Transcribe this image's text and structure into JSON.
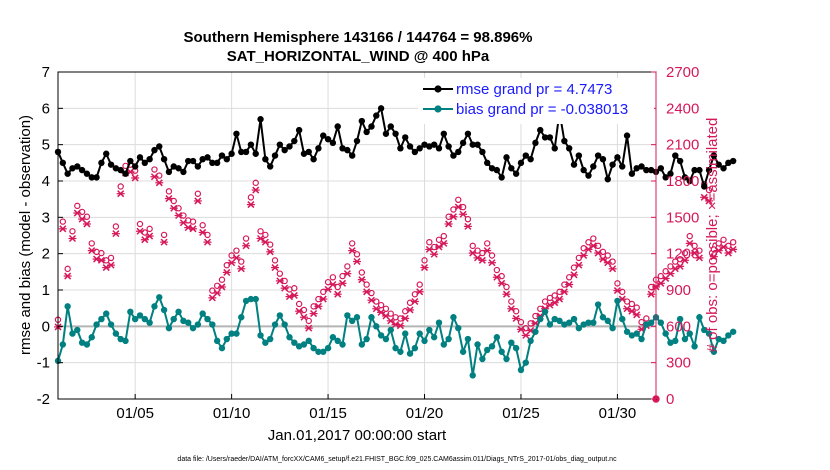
{
  "chart_data": {
    "type": "line",
    "title": "Southern Hemisphere 143166 / 144764 = 98.896%",
    "subtitle": "SAT_HORIZONTAL_WIND @ 400 hPa",
    "xlabel": "Jan.01,2017 00:00:00 start",
    "ylabel_left": "rmse and bias (model - observation)",
    "ylabel_right": "# of obs: o=possible; ×=assimilated",
    "x_ticks": [
      "01/05",
      "01/10",
      "01/15",
      "01/20",
      "01/25",
      "01/30"
    ],
    "x_tick_days": [
      5,
      10,
      15,
      20,
      25,
      30
    ],
    "x_range_days": [
      1,
      32
    ],
    "ylim_left": [
      -2,
      7
    ],
    "yticks_left": [
      -2,
      -1,
      0,
      1,
      2,
      3,
      4,
      5,
      6,
      7
    ],
    "ylim_right": [
      0,
      2700
    ],
    "yticks_right": [
      0,
      300,
      600,
      900,
      1200,
      1500,
      1800,
      2100,
      2400,
      2700
    ],
    "legend": [
      {
        "label": "rmse grand pr = 4.7473",
        "color": "#0000ff",
        "line_color": "#000000"
      },
      {
        "label": "bias grand pr = -0.038013",
        "color": "#0000ff",
        "line_color": "#008080"
      }
    ],
    "legend_position": "top-right",
    "colors": {
      "rmse": "#000000",
      "bias": "#008080",
      "obs": "#d6185a",
      "zero_line": "#b4b4b4",
      "grid": "#dcdcdc",
      "legend_text": "#1a1aff"
    },
    "x_start_day": 1,
    "x_step_days": 0.25,
    "series": [
      {
        "name": "rmse",
        "axis": "left",
        "values": [
          4.8,
          4.5,
          4.2,
          4.35,
          4.4,
          4.3,
          4.2,
          4.1,
          4.1,
          4.5,
          4.75,
          4.45,
          4.35,
          4.3,
          4.2,
          4.55,
          4.4,
          4.65,
          4.5,
          4.6,
          4.85,
          4.95,
          4.6,
          4.25,
          4.4,
          4.35,
          4.25,
          4.55,
          4.55,
          4.4,
          4.6,
          4.65,
          4.5,
          4.5,
          4.7,
          4.6,
          4.75,
          5.3,
          4.8,
          4.8,
          5.0,
          4.75,
          5.7,
          4.6,
          4.4,
          4.7,
          5.0,
          4.85,
          4.95,
          5.1,
          5.4,
          4.75,
          4.8,
          4.6,
          4.9,
          5.25,
          5.15,
          5.05,
          5.5,
          4.9,
          4.85,
          4.7,
          5.1,
          5.65,
          5.35,
          5.5,
          5.8,
          6.0,
          5.3,
          5.5,
          5.3,
          4.9,
          5.2,
          4.95,
          4.8,
          4.9,
          5.0,
          4.95,
          5.0,
          4.9,
          5.3,
          4.95,
          4.7,
          4.8,
          5.05,
          5.3,
          5.0,
          5.0,
          4.8,
          4.5,
          4.35,
          4.3,
          4.1,
          4.65,
          4.35,
          4.2,
          4.5,
          4.7,
          4.6,
          5.05,
          5.4,
          5.2,
          5.2,
          4.9,
          5.9,
          5.1,
          4.9,
          4.45,
          4.7,
          4.3,
          4.15,
          4.4,
          4.7,
          4.6,
          4.05,
          4.45,
          4.65,
          4.4,
          5.25,
          4.2,
          4.35,
          4.4,
          4.3,
          4.3,
          4.25,
          4.35,
          4.1,
          4.2,
          4.7,
          4.55,
          4.1,
          4.0,
          4.3,
          4.3,
          3.85,
          4.3,
          4.7,
          4.45,
          4.35,
          4.5,
          4.55
        ]
      },
      {
        "name": "bias",
        "axis": "left",
        "values": [
          -0.95,
          -0.5,
          0.55,
          -0.2,
          -0.1,
          -0.45,
          -0.5,
          -0.3,
          0.05,
          0.2,
          0.35,
          0.05,
          -0.2,
          -0.35,
          -0.4,
          0.4,
          0.2,
          0.3,
          0.2,
          0.1,
          0.55,
          0.8,
          0.45,
          -0.05,
          0.2,
          0.4,
          0.15,
          0.1,
          -0.05,
          0.05,
          0.35,
          0.2,
          0.05,
          -0.4,
          -0.6,
          -0.35,
          -0.2,
          -0.2,
          0.25,
          0.7,
          0.75,
          0.75,
          -0.25,
          -0.45,
          -0.35,
          0.05,
          0.3,
          0.05,
          -0.3,
          -0.45,
          -0.55,
          -0.5,
          -0.4,
          -0.6,
          -0.7,
          -0.7,
          -0.6,
          -0.3,
          -0.4,
          -0.5,
          0.3,
          0.15,
          0.25,
          -0.5,
          -0.35,
          0.25,
          0.0,
          -0.25,
          -0.35,
          -0.1,
          -0.6,
          -0.7,
          -0.2,
          -0.75,
          -0.6,
          -0.2,
          -0.4,
          -0.1,
          -0.3,
          0.1,
          -0.5,
          -0.35,
          0.25,
          -0.05,
          -0.7,
          -0.35,
          -1.35,
          -0.5,
          -0.9,
          -0.65,
          -0.55,
          -0.3,
          -0.7,
          -0.9,
          -0.45,
          -0.6,
          -1.2,
          -1.0,
          -0.4,
          -0.15,
          0.2,
          0.4,
          0.05,
          0.2,
          0.15,
          0.05,
          0.1,
          0.2,
          -0.05,
          0.05,
          0.1,
          0.1,
          0.6,
          0.25,
          0.15,
          -0.05,
          0.7,
          0.2,
          -0.15,
          -0.25,
          -0.2,
          -0.35,
          0.05,
          0.1,
          0.25,
          0.1,
          -0.2,
          -0.45,
          -0.4,
          0.2,
          -0.35,
          -0.2,
          -0.55,
          0.25,
          -0.1,
          -0.2,
          -0.7,
          -0.35,
          -0.4,
          -0.25,
          -0.15
        ]
      },
      {
        "name": "obs_possible",
        "axis": "right",
        "marker": "o",
        "values": [
          630,
          1440,
          1050,
          1360,
          1570,
          1520,
          1480,
          1260,
          1190,
          1180,
          1120,
          1140,
          1400,
          1730,
          1900,
          1910,
          1860,
          1420,
          1350,
          1380,
          1870,
          1820,
          1330,
          1690,
          1610,
          1550,
          1490,
          1450,
          1440,
          1670,
          1410,
          1330,
          870,
          910,
          960,
          1080,
          1160,
          1200,
          1110,
          1300,
          1640,
          1760,
          1360,
          1330,
          1250,
          1120,
          1010,
          950,
          880,
          890,
          760,
          710,
          620,
          740,
          800,
          860,
          940,
          980,
          900,
          990,
          1070,
          1260,
          1170,
          1020,
          920,
          850,
          780,
          750,
          720,
          680,
          650,
          640,
          700,
          770,
          840,
          920,
          1120,
          1270,
          1230,
          1290,
          1320,
          1480,
          1540,
          1620,
          1560,
          1460,
          1240,
          1200,
          1180,
          1260,
          1160,
          1040,
          990,
          900,
          780,
          700,
          610,
          560,
          600,
          660,
          720,
          780,
          810,
          830,
          860,
          920,
          980,
          1060,
          1140,
          1220,
          1270,
          1300,
          1240,
          1190,
          1160,
          1110,
          930,
          860,
          780,
          760,
          730,
          610,
          640,
          900,
          960,
          990,
          1030,
          1070,
          1110,
          1130,
          1180,
          1320,
          1240,
          1200,
          1750,
          1700,
          1210,
          1260,
          1290,
          1240,
          1270
        ]
      },
      {
        "name": "obs_assimilated",
        "axis": "right",
        "marker": "x",
        "values": [
          620,
          1430,
          1040,
          1350,
          1560,
          1510,
          1470,
          1250,
          1180,
          1170,
          1110,
          1130,
          1390,
          1720,
          1890,
          1900,
          1850,
          1410,
          1340,
          1370,
          1860,
          1810,
          1320,
          1680,
          1600,
          1540,
          1480,
          1440,
          1430,
          1660,
          1400,
          1320,
          860,
          900,
          950,
          1070,
          1150,
          1190,
          1100,
          1290,
          1630,
          1750,
          1350,
          1320,
          1240,
          1110,
          1000,
          940,
          870,
          880,
          750,
          700,
          610,
          730,
          790,
          850,
          930,
          970,
          890,
          980,
          1060,
          1250,
          1160,
          1010,
          910,
          840,
          770,
          740,
          710,
          670,
          640,
          630,
          690,
          760,
          830,
          910,
          1110,
          1260,
          1220,
          1280,
          1310,
          1470,
          1530,
          1610,
          1550,
          1450,
          1230,
          1190,
          1170,
          1250,
          1150,
          1030,
          980,
          890,
          770,
          690,
          600,
          550,
          590,
          650,
          710,
          770,
          800,
          820,
          850,
          910,
          970,
          1050,
          1130,
          1210,
          1260,
          1290,
          1230,
          1180,
          1150,
          1100,
          920,
          850,
          770,
          750,
          720,
          600,
          630,
          890,
          950,
          980,
          1020,
          1060,
          1100,
          1120,
          1170,
          1310,
          1230,
          1190,
          1690,
          1660,
          1200,
          1250,
          1280,
          1230,
          1260
        ]
      }
    ],
    "extra_points": [
      {
        "name": "obs_zero",
        "axis": "right",
        "day": 32,
        "value": 0
      }
    ],
    "data_file_note": "data file: /Users/raeder/DAI/ATM_forcXX/CAM6_setup/f.e21.FHIST_BGC.f09_025.CAM6assim.011/Diags_NTrS_2017-01/obs_diag_output.nc"
  }
}
